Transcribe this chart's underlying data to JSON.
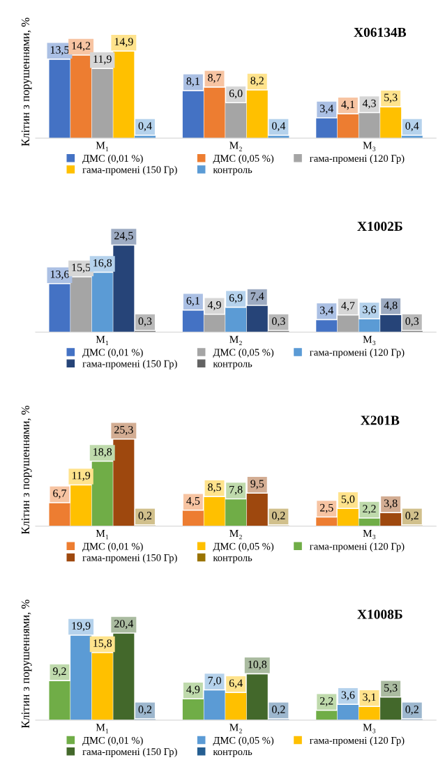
{
  "chart_data": [
    {
      "type": "bar",
      "title": "Х06134В",
      "ylabel": "Клітин з порушеннями, %",
      "categories": [
        "M₁",
        "M₂",
        "M₃"
      ],
      "legend": "bottom",
      "series": [
        {
          "name": "ДМС (0,01 %)",
          "color": "#4472c4",
          "values": [
            13.5,
            8.1,
            3.4
          ],
          "value_labels": [
            "13,5",
            "8,1",
            "3,4"
          ]
        },
        {
          "name": "ДМС (0,05 %)",
          "color": "#ed7d31",
          "values": [
            14.2,
            8.7,
            4.1
          ],
          "value_labels": [
            "14,2",
            "8,7",
            "4,1"
          ]
        },
        {
          "name": "гама-промені (120 Гр)",
          "color": "#a5a5a5",
          "values": [
            11.9,
            6.0,
            4.3
          ],
          "value_labels": [
            "11,9",
            "6,0",
            "4,3"
          ]
        },
        {
          "name": "гама-промені (150 Гр)",
          "color": "#ffc000",
          "values": [
            14.9,
            8.2,
            5.3
          ],
          "value_labels": [
            "14,9",
            "8,2",
            "5,3"
          ]
        },
        {
          "name": "контроль",
          "color": "#5b9bd5",
          "values": [
            0.4,
            0.4,
            0.4
          ],
          "value_labels": [
            "0,4",
            "0,4",
            "0,4"
          ]
        }
      ]
    },
    {
      "type": "bar",
      "title": "Х1002Б",
      "categories": [
        "M₁",
        "M₂",
        "M₃"
      ],
      "legend": "bottom",
      "series": [
        {
          "name": "ДМС (0,01 %)",
          "color": "#4472c4",
          "values": [
            13.6,
            6.1,
            3.4
          ],
          "value_labels": [
            "13,6",
            "6,1",
            "3,4"
          ]
        },
        {
          "name": "ДМС (0,05 %)",
          "color": "#a5a5a5",
          "values": [
            15.5,
            4.9,
            4.7
          ],
          "value_labels": [
            "15,5",
            "4,9",
            "4,7"
          ]
        },
        {
          "name": "гама-промені (120 Гр)",
          "color": "#5b9bd5",
          "values": [
            16.8,
            6.9,
            3.6
          ],
          "value_labels": [
            "16,8",
            "6,9",
            "3,6"
          ]
        },
        {
          "name": "гама-промені (150 Гр)",
          "color": "#264478",
          "values": [
            24.5,
            7.4,
            4.8
          ],
          "value_labels": [
            "24,5",
            "7,4",
            "4,8"
          ]
        },
        {
          "name": "контроль",
          "color": "#636363",
          "values": [
            0.3,
            0.3,
            0.3
          ],
          "value_labels": [
            "0,3",
            "0,3",
            "0,3"
          ]
        }
      ]
    },
    {
      "type": "bar",
      "title": "Х201В",
      "ylabel": "Клітин з порушеннями, %",
      "categories": [
        "M₁",
        "M₂",
        "M₃"
      ],
      "legend": "bottom",
      "series": [
        {
          "name": "ДМС (0,01 %)",
          "color": "#ed7d31",
          "values": [
            6.7,
            4.5,
            2.5
          ],
          "value_labels": [
            "6,7",
            "4,5",
            "2,5"
          ]
        },
        {
          "name": "ДМС (0,05 %)",
          "color": "#ffc000",
          "values": [
            11.9,
            8.5,
            5.0
          ],
          "value_labels": [
            "11,9",
            "8,5",
            "5,0"
          ]
        },
        {
          "name": "гама-промені (120 Гр)",
          "color": "#70ad47",
          "values": [
            18.8,
            7.8,
            2.2
          ],
          "value_labels": [
            "18,8",
            "7,8",
            "2,2"
          ]
        },
        {
          "name": "гама-промені (150 Гр)",
          "color": "#9e480e",
          "values": [
            25.3,
            9.5,
            3.8
          ],
          "value_labels": [
            "25,3",
            "9,5",
            "3,8"
          ]
        },
        {
          "name": "контроль",
          "color": "#997300",
          "values": [
            0.2,
            0.2,
            0.2
          ],
          "value_labels": [
            "0,2",
            "0,2",
            "0,2"
          ]
        }
      ]
    },
    {
      "type": "bar",
      "title": "Х1008Б",
      "ylabel": "Клітин з порушеннями, %",
      "categories": [
        "M₁",
        "M₂",
        "M₃"
      ],
      "legend": "bottom",
      "series": [
        {
          "name": "ДМС (0,01 %)",
          "color": "#70ad47",
          "values": [
            9.2,
            4.9,
            2.2
          ],
          "value_labels": [
            "9,2",
            "4,9",
            "2,2"
          ]
        },
        {
          "name": "ДМС (0,05 %)",
          "color": "#5b9bd5",
          "values": [
            19.9,
            7.0,
            3.6
          ],
          "value_labels": [
            "19,9",
            "7,0",
            "3,6"
          ]
        },
        {
          "name": "гама-промені (120 Гр)",
          "color": "#ffc000",
          "values": [
            15.8,
            6.4,
            3.1
          ],
          "value_labels": [
            "15,8",
            "6,4",
            "3,1"
          ]
        },
        {
          "name": "гама-промені (150 Гр)",
          "color": "#43682b",
          "values": [
            20.4,
            10.8,
            5.3
          ],
          "value_labels": [
            "20,4",
            "10,8",
            "5,3"
          ]
        },
        {
          "name": "контроль",
          "color": "#255e91",
          "values": [
            0.2,
            0.2,
            0.2
          ],
          "value_labels": [
            "0,2",
            "0,2",
            "0,2"
          ]
        }
      ]
    }
  ]
}
